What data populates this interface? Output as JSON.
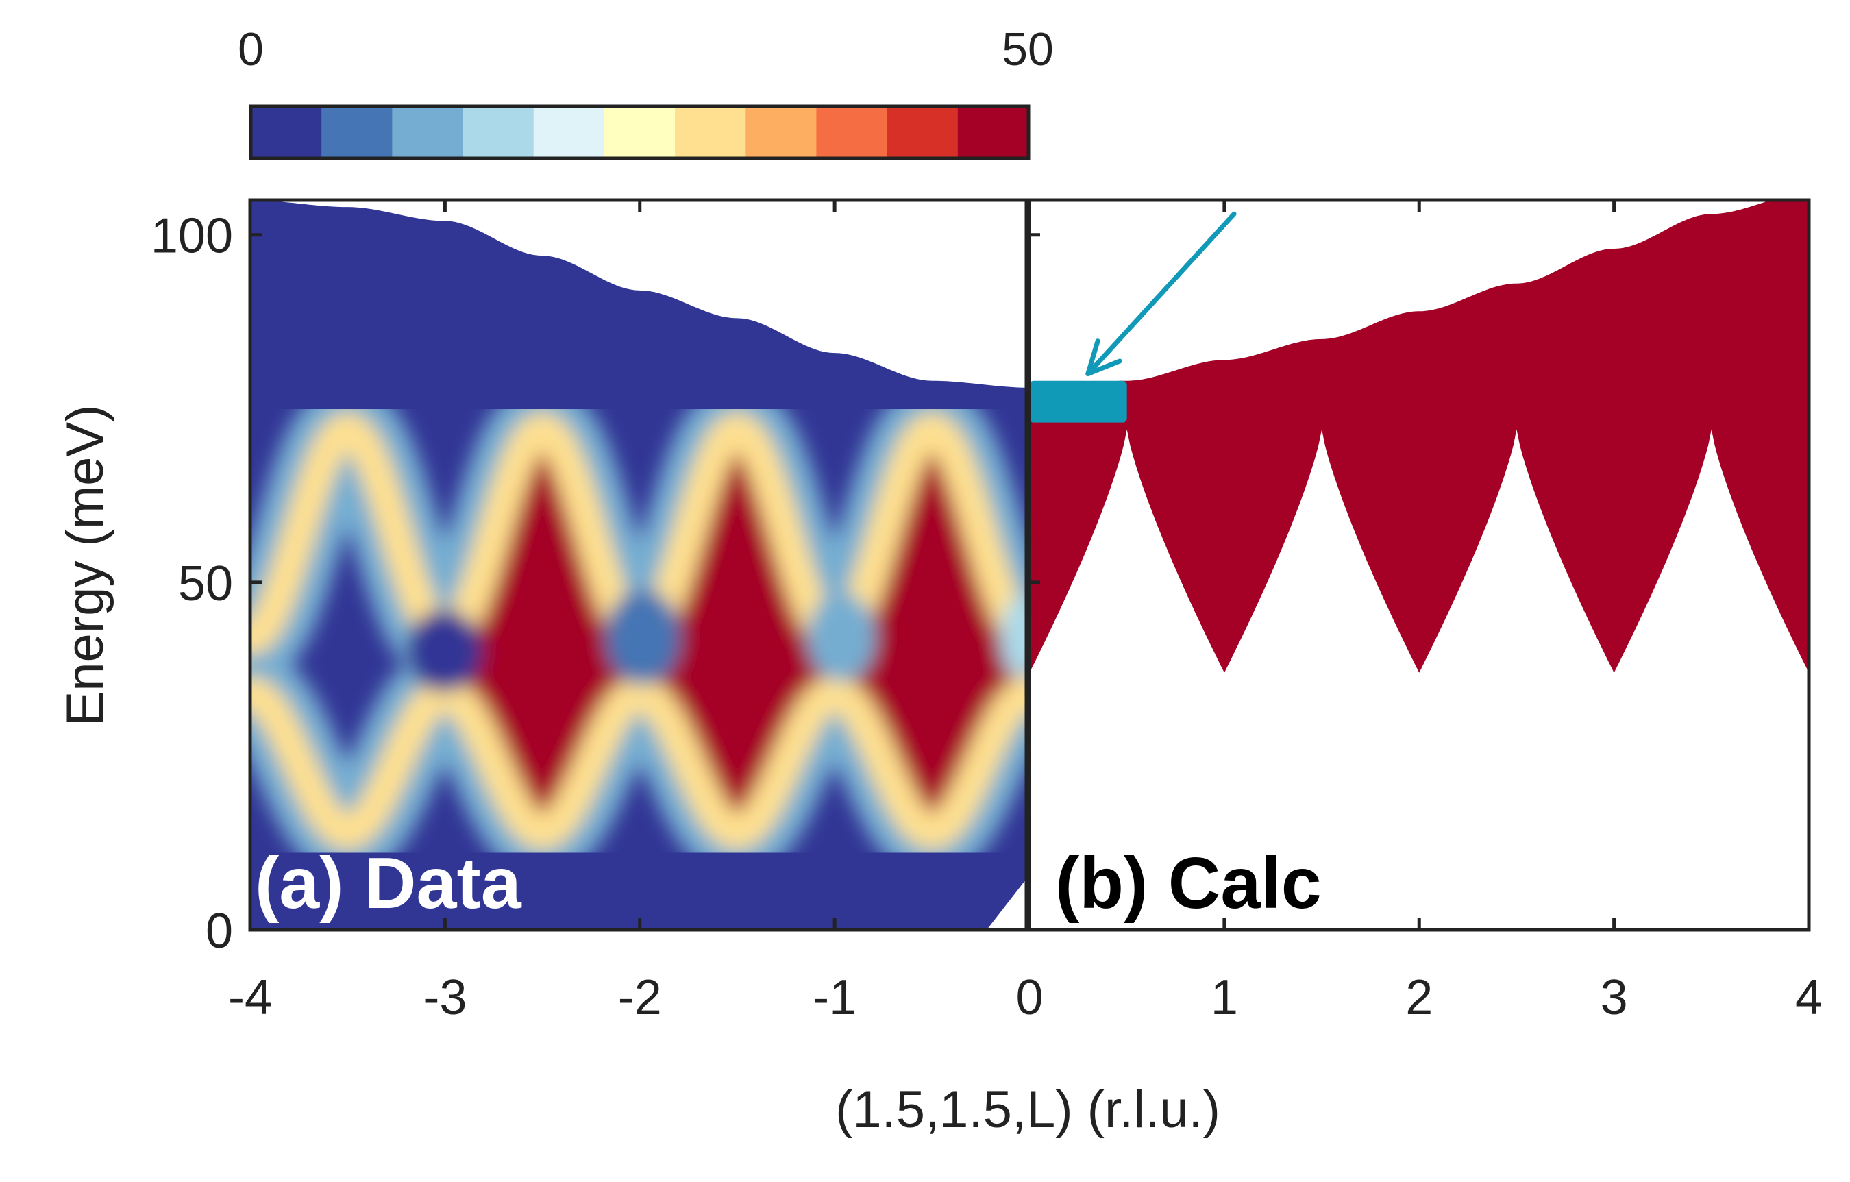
{
  "chart_data": {
    "type": "heatmap",
    "colorbar": {
      "min_label": "0",
      "max_label": "50",
      "range": [
        0,
        50
      ],
      "colors": [
        "#313695",
        "#4575b4",
        "#74add1",
        "#abd9e9",
        "#e0f3f8",
        "#ffffbf",
        "#fee090",
        "#fdae61",
        "#f46d43",
        "#d73027",
        "#a50026"
      ]
    },
    "xlabel": "(1.5,1.5,L) (r.l.u.)",
    "ylabel": "Energy (meV)",
    "xlim": [
      -4,
      4
    ],
    "ylim": [
      0,
      105
    ],
    "xticks": [
      "-4",
      "-3",
      "-2",
      "-1",
      "0",
      "1",
      "2",
      "3",
      "4"
    ],
    "yticks": [
      "0",
      "50",
      "100"
    ],
    "panels": [
      {
        "label": "(a) Data",
        "xlim": [
          -4,
          0
        ],
        "description_kind": "measured intensity map",
        "background_color": "#313695",
        "upper_boundary": [
          [
            -4,
            105
          ],
          [
            -3.5,
            104
          ],
          [
            -3,
            102
          ],
          [
            -2.5,
            97
          ],
          [
            -2,
            92
          ],
          [
            -1.5,
            88
          ],
          [
            -1,
            83
          ],
          [
            -0.5,
            79
          ],
          [
            0,
            78
          ]
        ],
        "lower_band": {
          "center": 24,
          "amplitude": 10,
          "period": 1,
          "phase_min_L": -1.5
        },
        "upper_band": {
          "center": 57,
          "amplitude": 15,
          "period": 1,
          "phase_max_L": -2.5
        }
      },
      {
        "label": "(b) Calc",
        "xlim": [
          0,
          4
        ],
        "description_kind": "calculated intensity",
        "fill_color": "#a50026",
        "upper_boundary": [
          [
            0,
            78
          ],
          [
            0.5,
            79
          ],
          [
            1,
            82
          ],
          [
            1.5,
            85
          ],
          [
            2,
            89
          ],
          [
            2.5,
            93
          ],
          [
            3,
            98
          ],
          [
            3.5,
            103
          ],
          [
            4,
            106
          ]
        ],
        "lower_edge": {
          "min": 37,
          "peak": 72,
          "peak_positions": [
            0.5,
            1.5,
            2.5,
            3.5
          ]
        },
        "highlight_box": {
          "x_range": [
            0,
            0.5
          ],
          "y_range": [
            73,
            79
          ],
          "color": "#1199b8"
        },
        "arrow": {
          "from": [
            1.05,
            103
          ],
          "to": [
            0.3,
            80
          ],
          "color": "#1199b8"
        }
      }
    ]
  }
}
